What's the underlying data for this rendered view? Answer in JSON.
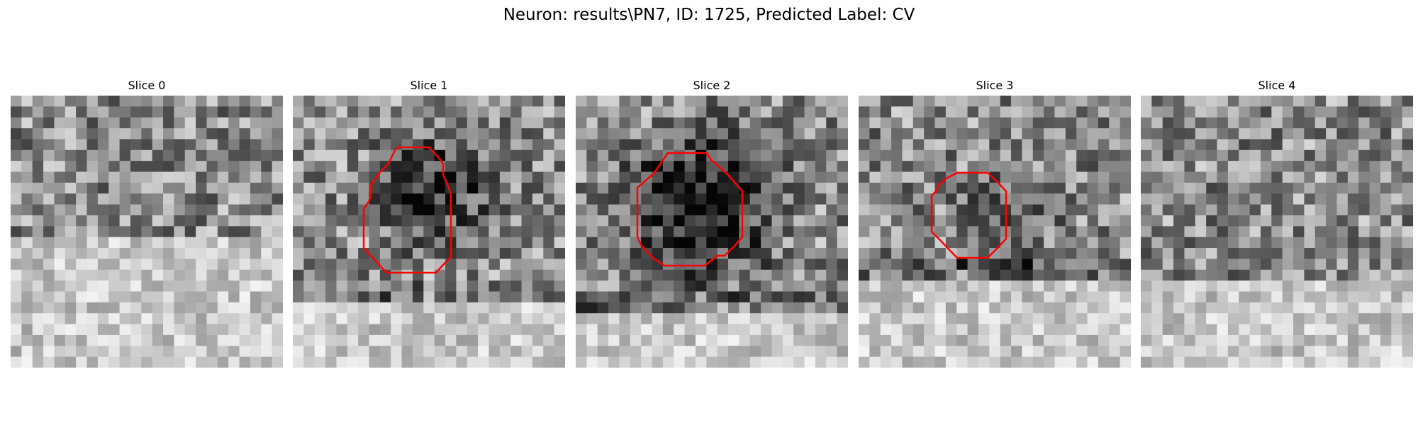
{
  "figure": {
    "title": "Neuron: results\\PN7, ID: 1725, Predicted Label: CV"
  },
  "slices": [
    {
      "label": "Slice 0",
      "blob": null,
      "band": 0.55,
      "roi": null
    },
    {
      "label": "Slice 1",
      "blob": "medium",
      "band": 0.78,
      "roi": {
        "color": "#ff0000"
      }
    },
    {
      "label": "Slice 2",
      "blob": "large",
      "band": 0.8,
      "roi": {
        "color": "#ff0000"
      }
    },
    {
      "label": "Slice 3",
      "blob": "small",
      "band": 0.7,
      "roi": {
        "color": "#ff0000"
      }
    },
    {
      "label": "Slice 4",
      "blob": null,
      "band": 0.68,
      "roi": null
    }
  ],
  "colors": {
    "contour": "#ff0000",
    "background": "#ffffff"
  }
}
